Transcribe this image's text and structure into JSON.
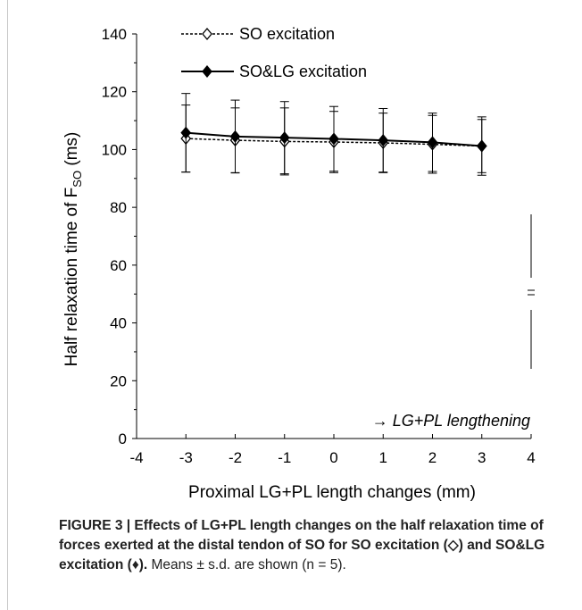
{
  "chart_data": {
    "type": "line",
    "xlabel": "Proximal LG+PL length changes (mm)",
    "ylabel_main": "Half relaxation time of F",
    "ylabel_sub": "SO",
    "ylabel_unit": " (ms)",
    "xlim": [
      -4,
      4
    ],
    "ylim": [
      0,
      140
    ],
    "x_ticks": [
      "-4",
      "-3",
      "-2",
      "-1",
      "0",
      "1",
      "2",
      "3",
      "4"
    ],
    "y_ticks": [
      "0",
      "20",
      "40",
      "60",
      "80",
      "100",
      "120",
      "140"
    ],
    "annotation": "→ LG+PL lengthening",
    "legend_position": "top-left",
    "series": [
      {
        "name": "SO excitation",
        "style": "dashed",
        "marker": "open-diamond",
        "color": "#000000",
        "x": [
          -3,
          -2,
          -1,
          0,
          1,
          2,
          3
        ],
        "y": [
          103.8,
          103.2,
          102.8,
          102.6,
          102.3,
          101.8,
          101.2
        ],
        "sd": [
          11.6,
          11.2,
          11.6,
          10.6,
          10.3,
          10.0,
          10.1
        ]
      },
      {
        "name": "SO&LG excitation",
        "style": "solid",
        "marker": "filled-diamond",
        "color": "#000000",
        "x": [
          -3,
          -2,
          -1,
          0,
          1,
          2,
          3
        ],
        "y": [
          105.8,
          104.5,
          104.1,
          103.7,
          103.2,
          102.5,
          101.2
        ],
        "sd": [
          13.6,
          12.6,
          12.5,
          11.2,
          11.0,
          10.1,
          9.2
        ]
      }
    ]
  },
  "caption": {
    "bold": "FIGURE 3 | Effects of LG+PL length changes on the half relaxation time of forces exerted at the distal tendon of SO for SO excitation (◇) and SO&LG excitation (♦).",
    "normal": " Means ± s.d. are shown (n = 5)."
  }
}
